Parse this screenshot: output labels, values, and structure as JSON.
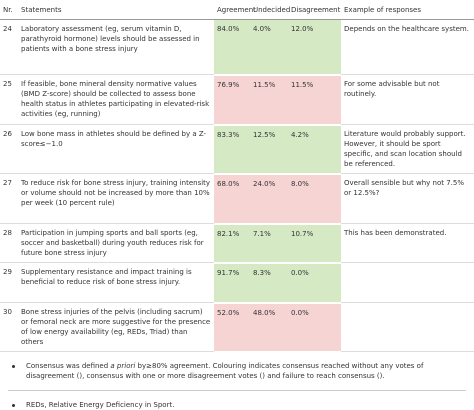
{
  "table": {
    "header": [
      "Nr.",
      "Statements",
      "Agreement",
      "Undecided",
      "Disagreement",
      "Example of responses"
    ],
    "rows": [
      {
        "nr": "24",
        "statement": "Laboratory assessment (eg, serum vitamin D, parathyroid hormone) levels should be assessed in patients with a bone stress injury",
        "agreement": "84.0%",
        "undecided": "4.0%",
        "disagreement": "12.0%",
        "example": "Depends on the healthcare system.",
        "color": "#d5e9c5"
      },
      {
        "nr": "25",
        "statement": "If feasible, bone mineral density normative values (BMD Z-score) should be collected to assess bone health status in athletes participating in elevated-risk activities (eg, running)",
        "agreement": "76.9%",
        "undecided": "11.5%",
        "disagreement": "11.5%",
        "example": "For some advisable but not routinely.",
        "color": "#f6d4d4"
      },
      {
        "nr": "26",
        "statement": "Low bone mass in athletes should be defined by a Z-score≤−1.0",
        "agreement": "83.3%",
        "undecided": "12.5%",
        "disagreement": "4.2%",
        "example": "Literature would probably support. However, it should be sport specific, and scan location should be referenced.",
        "color": "#d5e9c5"
      },
      {
        "nr": "27",
        "statement": "To reduce risk for bone stress injury, training intensity or volume should not be increased by more than 10% per week (10 percent rule)",
        "agreement": "68.0%",
        "undecided": "24.0%",
        "disagreement": "8.0%",
        "example": "Overall sensible but why not 7.5% or 12.5%?",
        "color": "#f6d4d4"
      },
      {
        "nr": "28",
        "statement": "Participation in jumping sports and ball sports (eg, soccer and basketball) during youth reduces risk for future bone stress injury",
        "agreement": "82.1%",
        "undecided": "7.1%",
        "disagreement": "10.7%",
        "example": "This has been demonstrated.",
        "color": "#d5e9c5"
      },
      {
        "nr": "29",
        "statement": "Supplementary resistance and impact training is beneficial to reduce risk of bone stress injury.",
        "agreement": "91.7%",
        "undecided": "8.3%",
        "disagreement": "0.0%",
        "color": "#d5e9c5"
      },
      {
        "nr": "30",
        "statement": "Bone stress injuries of the pelvis (including sacrum) or femoral neck are more suggestive for the presence of low energy availability (eg, REDs, Triad) than others",
        "agreement": "52.0%",
        "undecided": "48.0%",
        "disagreement": "0.0%",
        "color": "#f6d4d4"
      }
    ]
  },
  "footnotes": [
    {
      "before": "Consensus was defined ",
      "italic": "a priori",
      "after": " by≥80% agreement. Colouring indicates consensus reached without any votes of disagreement (), consensus with one or more disagreement votes () and failure to reach consensus ()."
    },
    {
      "before": "REDs, Relative Energy Deficiency in Sport."
    }
  ]
}
